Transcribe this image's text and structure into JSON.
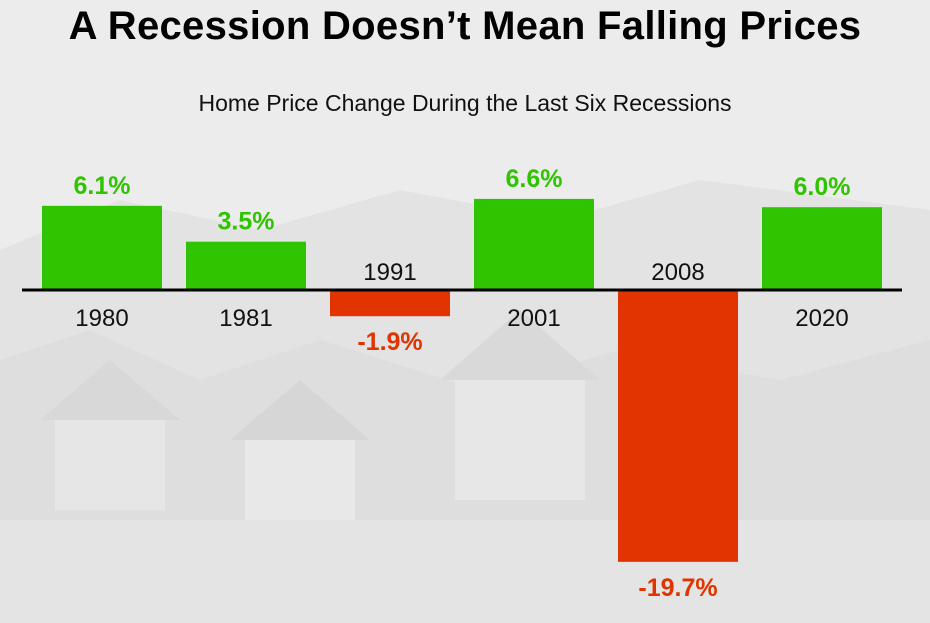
{
  "title": "A Recession Doesn’t Mean Falling Prices",
  "subtitle": "Home Price Change During the Last Six Recessions",
  "colors": {
    "positive": "#2fc400",
    "negative": "#e23400",
    "axis": "#000000",
    "category_text": "#111111"
  },
  "chart_data": {
    "type": "bar",
    "title": "A Recession Doesn’t Mean Falling Prices",
    "subtitle": "Home Price Change During the Last Six Recessions",
    "categories": [
      "1980",
      "1981",
      "1991",
      "2001",
      "2008",
      "2020"
    ],
    "values": [
      6.1,
      3.5,
      -1.9,
      6.6,
      -19.7,
      6.0
    ],
    "value_labels": [
      "6.1%",
      "3.5%",
      "-1.9%",
      "6.6%",
      "-19.7%",
      "6.0%"
    ],
    "unit": "%",
    "xlabel": "",
    "ylabel": "",
    "grid": false,
    "legend": "none"
  }
}
